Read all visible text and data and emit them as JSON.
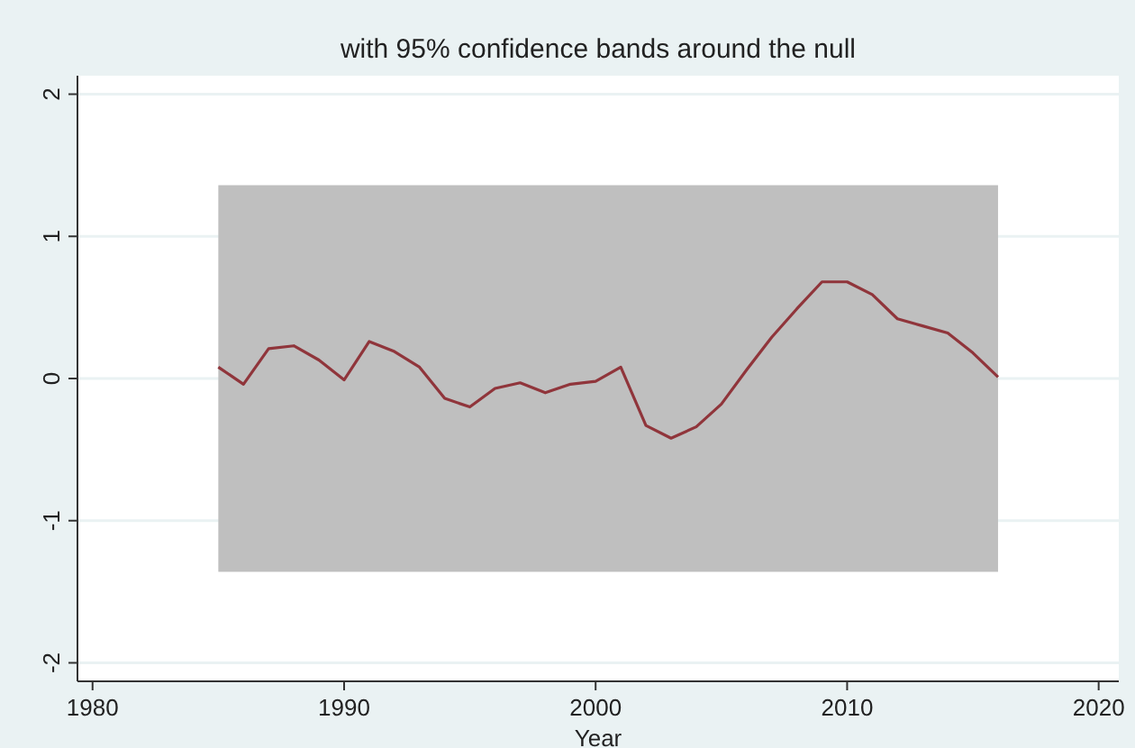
{
  "chart_data": {
    "type": "line",
    "title": "with 95% confidence bands around the null",
    "xlabel": "Year",
    "x": [
      1985,
      1986,
      1987,
      1988,
      1989,
      1990,
      1991,
      1992,
      1993,
      1994,
      1995,
      1996,
      1997,
      1998,
      1999,
      2000,
      2001,
      2002,
      2003,
      2004,
      2005,
      2006,
      2007,
      2008,
      2009,
      2010,
      2011,
      2012,
      2013,
      2014,
      2015,
      2016
    ],
    "series": [
      {
        "color": "#90353b",
        "values": [
          0.08,
          -0.04,
          0.21,
          0.23,
          0.13,
          -0.01,
          0.26,
          0.19,
          0.08,
          -0.14,
          -0.2,
          -0.07,
          -0.03,
          -0.1,
          -0.04,
          -0.02,
          0.08,
          -0.33,
          -0.42,
          -0.34,
          -0.18,
          0.06,
          0.29,
          0.49,
          0.68,
          0.68,
          0.59,
          0.42,
          0.37,
          0.32,
          0.18,
          0.01
        ],
        "lower": [
          -1.36,
          -1.36,
          -1.36,
          -1.36,
          -1.36,
          -1.36,
          -1.36,
          -1.36,
          -1.36,
          -1.36,
          -1.36,
          -1.36,
          -1.36,
          -1.36,
          -1.36,
          -1.36,
          -1.36,
          -1.36,
          -1.36,
          -1.36,
          -1.36,
          -1.36,
          -1.36,
          -1.36,
          -1.36,
          -1.36,
          -1.36,
          -1.36,
          -1.36,
          -1.36,
          -1.36,
          -1.36
        ],
        "upper": [
          1.36,
          1.36,
          1.36,
          1.36,
          1.36,
          1.36,
          1.36,
          1.36,
          1.36,
          1.36,
          1.36,
          1.36,
          1.36,
          1.36,
          1.36,
          1.36,
          1.36,
          1.36,
          1.36,
          1.36,
          1.36,
          1.36,
          1.36,
          1.36,
          1.36,
          1.36,
          1.36,
          1.36,
          1.36,
          1.36,
          1.36,
          1.36
        ]
      }
    ],
    "xlim": [
      1979.4,
      2020.8
    ],
    "xticks": [
      1980,
      1990,
      2000,
      2010,
      2020
    ],
    "ylim": [
      -2.13,
      2.13
    ],
    "yticks": [
      -2,
      -1,
      0,
      1,
      2
    ],
    "grid": "y",
    "marker": "none",
    "line_style": "solid"
  }
}
